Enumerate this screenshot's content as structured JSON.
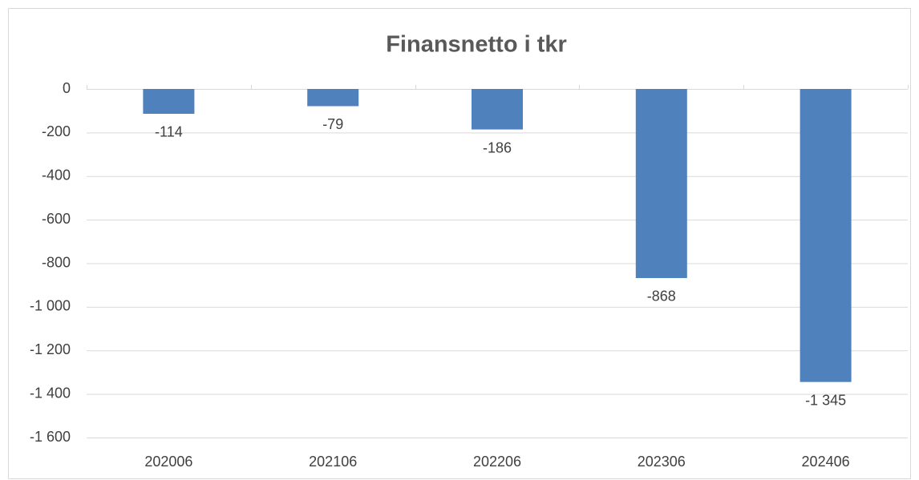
{
  "chart_data": {
    "type": "bar",
    "title": "Finansnetto i tkr",
    "categories": [
      "202006",
      "202106",
      "202206",
      "202306",
      "202406"
    ],
    "values": [
      -114,
      -79,
      -186,
      -868,
      -1345
    ],
    "value_labels": [
      "-114",
      "-79",
      "-186",
      "-868",
      "-1 345"
    ],
    "color": "#4f81bd",
    "ylim": [
      -1600,
      0
    ],
    "yticks": [
      0,
      -200,
      -400,
      -600,
      -800,
      {
        "value": -1000,
        "label": "-1 000"
      },
      {
        "value": -1200,
        "label": "-1 200"
      },
      {
        "value": -1400,
        "label": "-1 400"
      },
      {
        "value": -1600,
        "label": "-1 600"
      }
    ],
    "grid": true
  }
}
